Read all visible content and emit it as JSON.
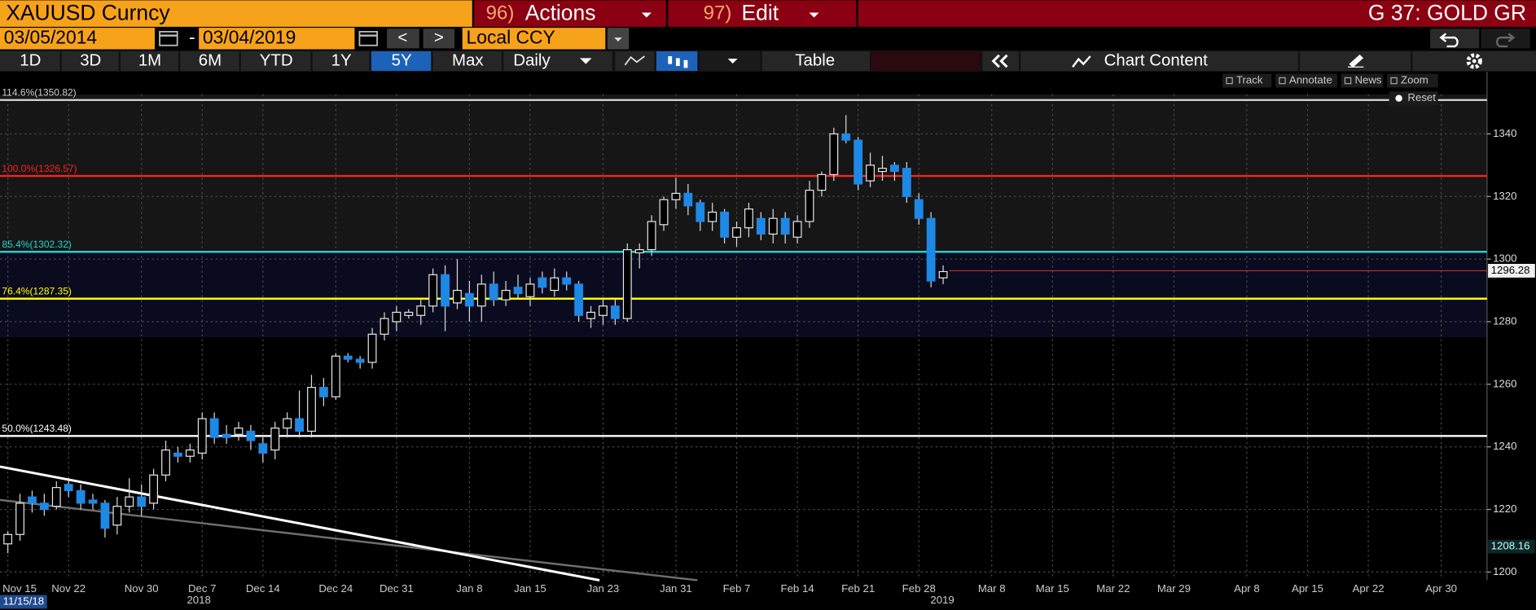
{
  "header": {
    "security": "XAUUSD Curncy",
    "actions_num": "96)",
    "actions": "Actions",
    "edit_num": "97)",
    "edit": "Edit",
    "page": "G 37: GOLD GR",
    "start": "03/05/2014",
    "dash": "-",
    "end": "03/04/2019",
    "prev": "<",
    "next": ">",
    "currency": "Local CCY",
    "ranges": [
      "1D",
      "3D",
      "1M",
      "6M",
      "YTD",
      "1Y",
      "5Y",
      "Max"
    ],
    "frequency": "Daily",
    "table": "Table",
    "chart_content": "Chart Content",
    "tools": [
      "Track",
      "Annotate",
      "News",
      "Zoom"
    ],
    "reset": "Reset"
  },
  "chart_data": {
    "type": "candlestick",
    "categories": [
      "Nov 15",
      null,
      null,
      null,
      null,
      "Nov 22",
      null,
      null,
      null,
      null,
      null,
      "Nov 30",
      null,
      null,
      null,
      null,
      "Dec 7",
      null,
      null,
      null,
      null,
      "Dec 14",
      null,
      null,
      null,
      null,
      null,
      "Dec 24",
      null,
      null,
      null,
      null,
      "Dec 31",
      null,
      null,
      null,
      null,
      null,
      "Jan 8",
      null,
      null,
      null,
      null,
      "Jan 15",
      null,
      null,
      null,
      null,
      null,
      "Jan 23",
      null,
      null,
      null,
      null,
      null,
      "Jan 31",
      null,
      null,
      null,
      null,
      "Feb 7",
      null,
      null,
      null,
      null,
      "Feb 14",
      null,
      null,
      null,
      null,
      "Feb 21",
      null,
      null,
      null,
      null,
      "Feb 28",
      null,
      null,
      null,
      null,
      null,
      "Mar 8",
      null,
      null,
      null,
      null,
      "Mar 15",
      null,
      null,
      null,
      null,
      "Mar 22",
      null,
      null,
      null,
      null,
      "Mar 29",
      null,
      null,
      null,
      null,
      null,
      "Apr 8",
      null,
      null,
      null,
      null,
      "Apr 15",
      null,
      null,
      null,
      null,
      "Apr 22",
      null,
      null,
      null,
      null,
      null,
      "Apr 30",
      null,
      null,
      null,
      null
    ],
    "open": [
      1209,
      1212,
      1224,
      1222,
      1221,
      1228,
      1226,
      1223,
      1222,
      1215,
      1221,
      1224,
      1222,
      1231,
      1238,
      1237,
      1238,
      1249,
      1244,
      1244,
      1245,
      1241,
      1239,
      1246,
      1249,
      1245,
      1259,
      1256,
      1269,
      1268,
      1267,
      1276,
      1280,
      1282,
      1282,
      1285,
      1295,
      1286,
      1289,
      1285,
      1292,
      1287,
      1291,
      1288,
      1294,
      1290,
      1294,
      1292,
      1281,
      1282,
      1285,
      1281,
      1302,
      1303,
      1311,
      1319,
      1321,
      1318,
      1312,
      1315,
      1307,
      1310,
      1313,
      1308,
      1313,
      1307,
      1312,
      1322,
      1327,
      1340,
      1338,
      1325,
      1328,
      1330,
      1329,
      1319,
      1313,
      1294,
      null,
      null,
      null,
      null,
      null,
      null,
      null,
      null,
      null,
      null,
      null,
      null,
      null,
      null,
      null,
      null,
      null,
      null,
      null,
      null,
      null,
      null,
      null,
      null,
      null,
      null,
      null,
      null,
      null,
      null,
      null,
      null,
      null,
      null,
      null,
      null,
      null,
      null,
      null,
      null,
      null,
      null,
      null,
      null,
      null
    ],
    "high": [
      1213,
      1225,
      1226,
      1225,
      1229,
      1230,
      1228,
      1225,
      1223,
      1224,
      1230,
      1228,
      1233,
      1242,
      1240,
      1241,
      1251,
      1251,
      1247,
      1248,
      1247,
      1243,
      1248,
      1251,
      1258,
      1263,
      1262,
      1270,
      1270,
      1269,
      1278,
      1283,
      1285,
      1284,
      1287,
      1297,
      1298,
      1300,
      1293,
      1295,
      1296,
      1293,
      1295,
      1294,
      1296,
      1297,
      1296,
      1293,
      1285,
      1287,
      1287,
      1305,
      1305,
      1314,
      1320,
      1326,
      1324,
      1319,
      1318,
      1316,
      1312,
      1318,
      1315,
      1316,
      1315,
      1314,
      1325,
      1328,
      1342,
      1346,
      1339,
      1334,
      1333,
      1331,
      1331,
      1321,
      1315,
      1298,
      null,
      null,
      null,
      null,
      null,
      null,
      null,
      null,
      null,
      null,
      null,
      null,
      null,
      null,
      null,
      null,
      null,
      null,
      null,
      null,
      null,
      null,
      null,
      null,
      null,
      null,
      null,
      null,
      null,
      null,
      null,
      null,
      null,
      null,
      null,
      null,
      null,
      null,
      null,
      null,
      null,
      null,
      null,
      null,
      null
    ],
    "low": [
      1206,
      1210,
      1219,
      1218,
      1220,
      1224,
      1220,
      1220,
      1211,
      1212,
      1219,
      1218,
      1220,
      1229,
      1235,
      1235,
      1236,
      1241,
      1241,
      1242,
      1239,
      1235,
      1236,
      1243,
      1243,
      1243,
      1253,
      1255,
      1267,
      1265,
      1265,
      1274,
      1277,
      1281,
      1279,
      1283,
      1277,
      1284,
      1280,
      1280,
      1285,
      1285,
      1287,
      1285,
      1289,
      1288,
      1290,
      1280,
      1278,
      1279,
      1279,
      1280,
      1297,
      1301,
      1309,
      1316,
      1314,
      1309,
      1309,
      1305,
      1304,
      1307,
      1306,
      1305,
      1305,
      1305,
      1310,
      1320,
      1325,
      1337,
      1322,
      1323,
      1325,
      1325,
      1318,
      1311,
      1291,
      1292,
      null,
      null,
      null,
      null,
      null,
      null,
      null,
      null,
      null,
      null,
      null,
      null,
      null,
      null,
      null,
      null,
      null,
      null,
      null,
      null,
      null,
      null,
      null,
      null,
      null,
      null,
      null,
      null,
      null,
      null,
      null,
      null,
      null,
      null,
      null,
      null,
      null,
      null,
      null,
      null,
      null,
      null,
      null,
      null,
      null
    ],
    "close": [
      1212,
      1222,
      1222,
      1220,
      1227,
      1226,
      1222,
      1222,
      1214,
      1221,
      1224,
      1221,
      1231,
      1239,
      1237,
      1239,
      1249,
      1243,
      1243,
      1246,
      1242,
      1238,
      1246,
      1249,
      1245,
      1259,
      1256,
      1269,
      1268,
      1267,
      1276,
      1281,
      1283,
      1283,
      1285,
      1295,
      1285,
      1290,
      1285,
      1292,
      1287,
      1290,
      1289,
      1292,
      1291,
      1294,
      1292,
      1282,
      1283,
      1285,
      1281,
      1303,
      1303,
      1312,
      1319,
      1321,
      1317,
      1312,
      1315,
      1307,
      1310,
      1316,
      1308,
      1313,
      1308,
      1312,
      1322,
      1327,
      1340,
      1338,
      1324,
      1330,
      1329,
      1328,
      1320,
      1313,
      1293,
      1296,
      null,
      null,
      null,
      null,
      null,
      null,
      null,
      null,
      null,
      null,
      null,
      null,
      null,
      null,
      null,
      null,
      null,
      null,
      null,
      null,
      null,
      null,
      null,
      null,
      null,
      null,
      null,
      null,
      null,
      null,
      null,
      null,
      null,
      null,
      null,
      null,
      null,
      null,
      null,
      null,
      null,
      null,
      null,
      null,
      null
    ],
    "up_color": "#000000",
    "up_edge": "#e8e8e8",
    "down_color": "#1e88e5",
    "ylim": [
      1198,
      1352
    ],
    "yticks": [
      1200,
      1220,
      1240,
      1260,
      1280,
      1300,
      1320,
      1340
    ],
    "grid": true,
    "levels": [
      {
        "label": "114.6%(1350.82)",
        "value": 1350.82,
        "color": "#d0d0d0"
      },
      {
        "label": "100.0%(1326.57)",
        "value": 1326.57,
        "color": "#ff2020"
      },
      {
        "label": "85.4%(1302.32)",
        "value": 1302.32,
        "color": "#22d3d3"
      },
      {
        "label": "76.4%(1287.35)",
        "value": 1287.35,
        "color": "#ffff00"
      },
      {
        "label": "50.0%(1243.48)",
        "value": 1243.48,
        "color": "#ffffff"
      }
    ],
    "last_price": 1296.28,
    "start_price": 1208.16,
    "year_labels": [
      "2018",
      "2019"
    ],
    "start_date": "11/15/18"
  }
}
